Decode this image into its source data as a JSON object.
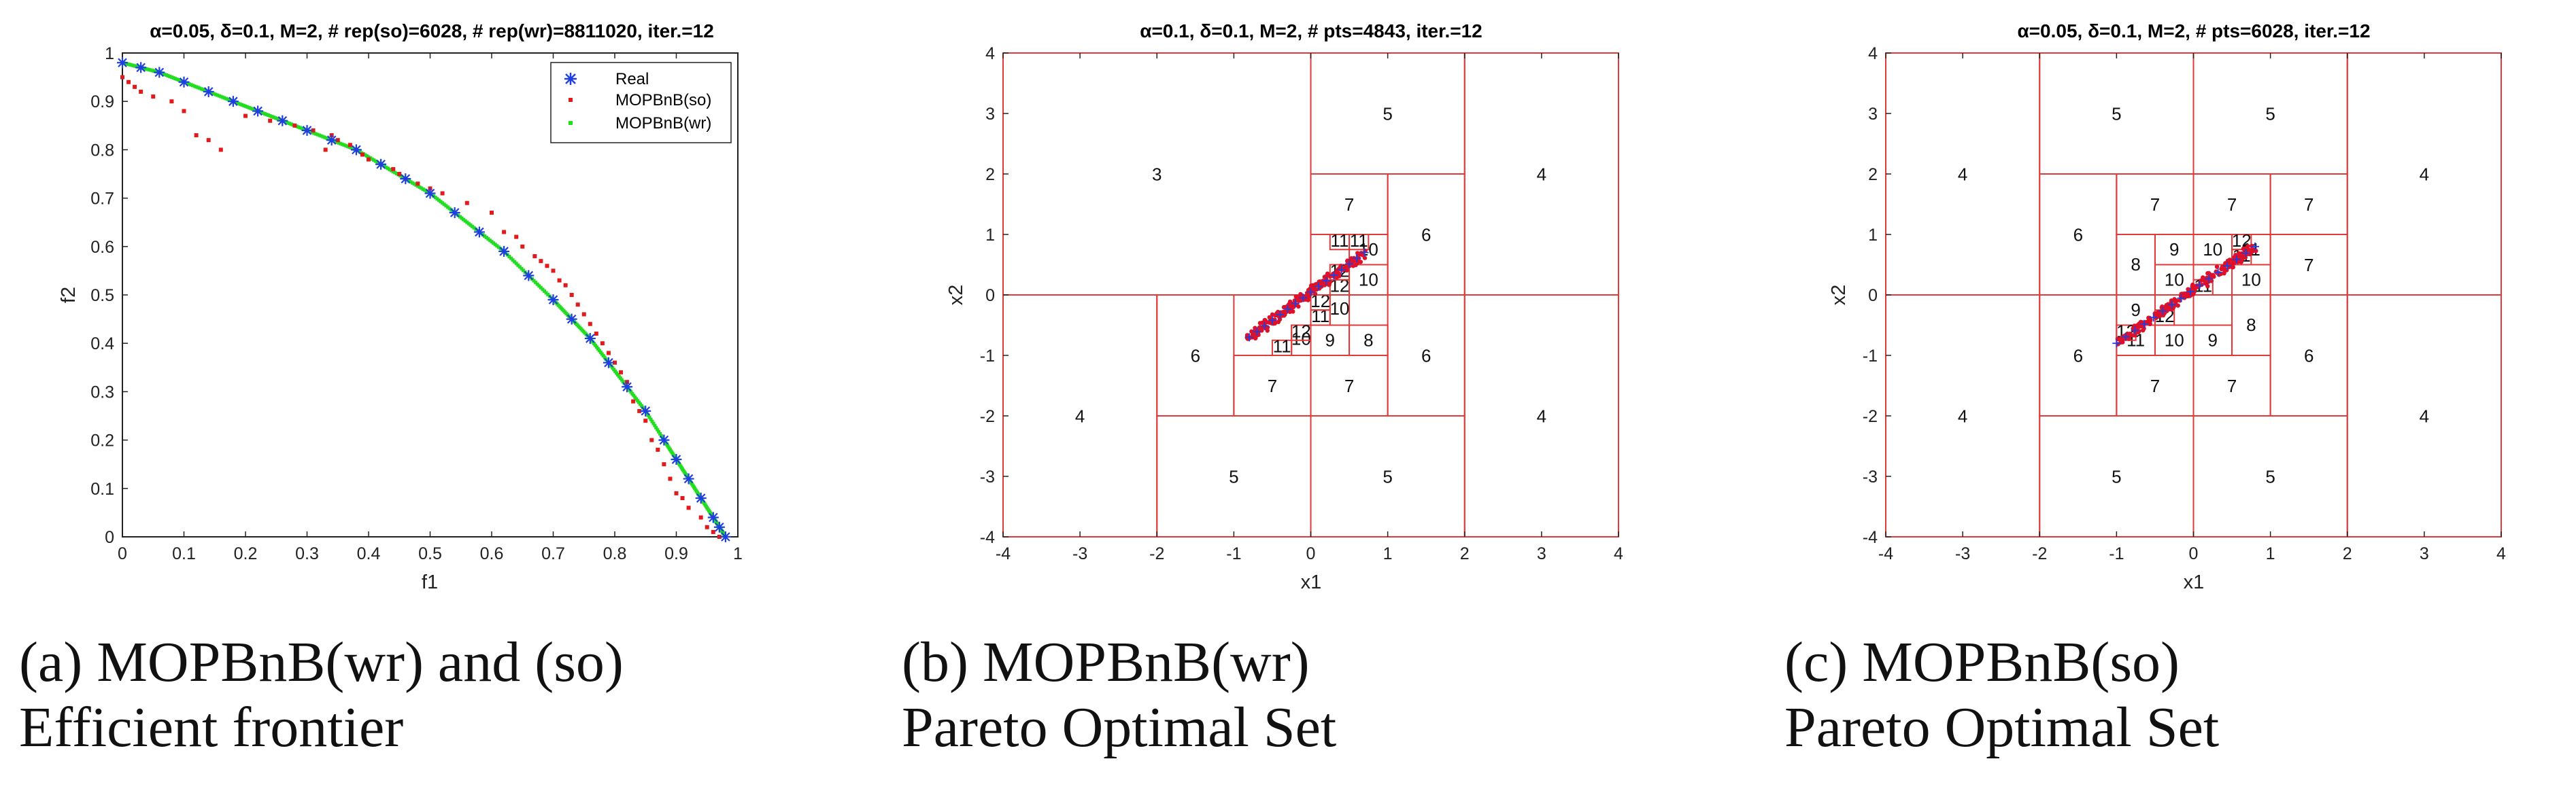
{
  "chart_data": [
    {
      "type": "scatter",
      "title": "α=0.05, δ=0.1, M=2, # rep(so)=6028, # rep(wr)=8811020, iter.=12",
      "xlabel": "f1",
      "ylabel": "f2",
      "xlim": [
        0,
        1
      ],
      "ylim": [
        0,
        1
      ],
      "xticks": [
        "0",
        "0.1",
        "0.2",
        "0.3",
        "0.4",
        "0.5",
        "0.6",
        "0.7",
        "0.8",
        "0.9",
        "1"
      ],
      "yticks": [
        "0",
        "0.1",
        "0.2",
        "0.3",
        "0.4",
        "0.5",
        "0.6",
        "0.7",
        "0.8",
        "0.9",
        "1"
      ],
      "legend_position": "top-right",
      "colors": {
        "real": "#1f3fe0",
        "so": "#e01b1b",
        "wr": "#22dd22",
        "axis": "#222222"
      },
      "series": [
        {
          "name": "Real",
          "marker": "asterisk",
          "x": [
            0,
            0.03,
            0.06,
            0.1,
            0.14,
            0.18,
            0.22,
            0.26,
            0.3,
            0.34,
            0.38,
            0.42,
            0.46,
            0.5,
            0.54,
            0.58,
            0.62,
            0.66,
            0.7,
            0.73,
            0.76,
            0.79,
            0.82,
            0.85,
            0.88,
            0.9,
            0.92,
            0.94,
            0.96,
            0.97,
            0.98
          ],
          "y": [
            0.98,
            0.97,
            0.96,
            0.94,
            0.92,
            0.9,
            0.88,
            0.86,
            0.84,
            0.82,
            0.8,
            0.77,
            0.74,
            0.71,
            0.67,
            0.63,
            0.59,
            0.54,
            0.49,
            0.45,
            0.41,
            0.36,
            0.31,
            0.26,
            0.2,
            0.16,
            0.12,
            0.08,
            0.04,
            0.02,
            0
          ]
        },
        {
          "name": "MOPBnB(so)",
          "marker": "dot",
          "x": [
            0,
            0.01,
            0.02,
            0.03,
            0.05,
            0.08,
            0.1,
            0.12,
            0.14,
            0.16,
            0.2,
            0.24,
            0.28,
            0.31,
            0.33,
            0.34,
            0.35,
            0.37,
            0.38,
            0.39,
            0.4,
            0.42,
            0.44,
            0.45,
            0.46,
            0.48,
            0.5,
            0.52,
            0.56,
            0.6,
            0.62,
            0.64,
            0.65,
            0.67,
            0.68,
            0.69,
            0.7,
            0.71,
            0.72,
            0.73,
            0.74,
            0.75,
            0.76,
            0.77,
            0.78,
            0.79,
            0.8,
            0.81,
            0.82,
            0.83,
            0.84,
            0.85,
            0.86,
            0.87,
            0.88,
            0.89,
            0.9,
            0.91,
            0.92,
            0.94,
            0.95,
            0.96,
            0.97
          ],
          "y": [
            0.95,
            0.94,
            0.93,
            0.92,
            0.91,
            0.9,
            0.88,
            0.83,
            0.82,
            0.8,
            0.87,
            0.86,
            0.85,
            0.84,
            0.8,
            0.83,
            0.82,
            0.81,
            0.8,
            0.79,
            0.78,
            0.77,
            0.76,
            0.75,
            0.74,
            0.73,
            0.72,
            0.71,
            0.69,
            0.67,
            0.63,
            0.62,
            0.6,
            0.58,
            0.57,
            0.56,
            0.55,
            0.53,
            0.52,
            0.5,
            0.48,
            0.46,
            0.44,
            0.42,
            0.4,
            0.38,
            0.36,
            0.34,
            0.32,
            0.28,
            0.26,
            0.24,
            0.2,
            0.18,
            0.15,
            0.12,
            0.09,
            0.08,
            0.06,
            0.04,
            0.02,
            0.01,
            0
          ]
        },
        {
          "name": "MOPBnB(wr)",
          "marker": "dot",
          "x": [
            0,
            0.98
          ],
          "y": [
            0.98,
            0
          ],
          "note": "dense points along the Real frontier"
        }
      ]
    },
    {
      "type": "scatter",
      "title": "α=0.1, δ=0.1, M=2, # pts=4843, iter.=12",
      "xlabel": "x1",
      "ylabel": "x2",
      "xlim": [
        -4,
        4
      ],
      "ylim": [
        -4,
        4
      ],
      "xticks": [
        "-4",
        "-3",
        "-2",
        "-1",
        "0",
        "1",
        "2",
        "3",
        "4"
      ],
      "yticks": [
        "-4",
        "-3",
        "-2",
        "-1",
        "0",
        "1",
        "2",
        "3",
        "4"
      ],
      "colors": {
        "rect": "#e03a3a",
        "points": "#e0102a",
        "real": "#1f3fe0"
      },
      "cells": [
        {
          "label": "3",
          "x": [
            -4,
            0
          ],
          "y": [
            0,
            4
          ]
        },
        {
          "label": "4",
          "x": [
            -4,
            -2
          ],
          "y": [
            -4,
            0
          ]
        },
        {
          "label": "4",
          "x": [
            2,
            4
          ],
          "y": [
            0,
            4
          ]
        },
        {
          "label": "4",
          "x": [
            2,
            4
          ],
          "y": [
            -4,
            0
          ]
        },
        {
          "label": "5",
          "x": [
            0,
            2
          ],
          "y": [
            2,
            4
          ]
        },
        {
          "label": "5",
          "x": [
            -2,
            0
          ],
          "y": [
            -4,
            -2
          ]
        },
        {
          "label": "5",
          "x": [
            0,
            2
          ],
          "y": [
            -4,
            -2
          ]
        },
        {
          "label": "6",
          "x": [
            1,
            2
          ],
          "y": [
            0,
            2
          ]
        },
        {
          "label": "6",
          "x": [
            -2,
            -1
          ],
          "y": [
            -2,
            0
          ]
        },
        {
          "label": "6",
          "x": [
            1,
            2
          ],
          "y": [
            -2,
            0
          ]
        },
        {
          "label": "7",
          "x": [
            0,
            1
          ],
          "y": [
            1,
            2
          ]
        },
        {
          "label": "7",
          "x": [
            -1,
            0
          ],
          "y": [
            -2,
            -1
          ]
        },
        {
          "label": "7",
          "x": [
            0,
            1
          ],
          "y": [
            -2,
            -1
          ]
        },
        {
          "label": "8",
          "x": [
            0.5,
            1
          ],
          "y": [
            -1,
            -0.5
          ]
        },
        {
          "label": "9",
          "x": [
            0,
            0.5
          ],
          "y": [
            -1,
            -0.5
          ]
        },
        {
          "label": "10",
          "x": [
            -0.25,
            0
          ],
          "y": [
            -1,
            -0.5
          ]
        },
        {
          "label": "10",
          "x": [
            0.25,
            0.5
          ],
          "y": [
            -0.5,
            0
          ]
        },
        {
          "label": "10",
          "x": [
            0.5,
            1
          ],
          "y": [
            0.5,
            1
          ]
        },
        {
          "label": "10",
          "x": [
            0.5,
            1
          ],
          "y": [
            0,
            0.5
          ]
        },
        {
          "label": "11",
          "x": [
            -0.5,
            -0.25
          ],
          "y": [
            -1,
            -0.75
          ]
        },
        {
          "label": "11",
          "x": [
            0,
            0.25
          ],
          "y": [
            -0.5,
            -0.25
          ]
        },
        {
          "label": "11",
          "x": [
            0.25,
            0.5
          ],
          "y": [
            0.75,
            1
          ]
        },
        {
          "label": "11",
          "x": [
            0.5,
            0.75
          ],
          "y": [
            0.75,
            1
          ]
        },
        {
          "label": "12",
          "x": [
            0,
            0.25
          ],
          "y": [
            -0.25,
            0
          ]
        },
        {
          "label": "12",
          "x": [
            0.25,
            0.5
          ],
          "y": [
            0,
            0.25
          ]
        },
        {
          "label": "12",
          "x": [
            0.25,
            0.5
          ],
          "y": [
            0.25,
            0.5
          ]
        },
        {
          "label": "12",
          "x": [
            -0.25,
            0
          ],
          "y": [
            -0.75,
            -0.5
          ]
        }
      ],
      "points_diagonal": {
        "x": [
          -0.8,
          0.7
        ],
        "y": [
          -0.7,
          0.7
        ]
      }
    },
    {
      "type": "scatter",
      "title": "α=0.05, δ=0.1, M=2, # pts=6028, iter.=12",
      "xlabel": "x1",
      "ylabel": "x2",
      "xlim": [
        -4,
        4
      ],
      "ylim": [
        -4,
        4
      ],
      "xticks": [
        "-4",
        "-3",
        "-2",
        "-1",
        "0",
        "1",
        "2",
        "3",
        "4"
      ],
      "yticks": [
        "-4",
        "-3",
        "-2",
        "-1",
        "0",
        "1",
        "2",
        "3",
        "4"
      ],
      "colors": {
        "rect": "#e03a3a",
        "points": "#e0102a",
        "real": "#1f3fe0"
      },
      "cells": [
        {
          "label": "4",
          "x": [
            -4,
            -2
          ],
          "y": [
            0,
            4
          ]
        },
        {
          "label": "4",
          "x": [
            -4,
            -2
          ],
          "y": [
            -4,
            0
          ]
        },
        {
          "label": "4",
          "x": [
            2,
            4
          ],
          "y": [
            0,
            4
          ]
        },
        {
          "label": "4",
          "x": [
            2,
            4
          ],
          "y": [
            -4,
            0
          ]
        },
        {
          "label": "5",
          "x": [
            -2,
            0
          ],
          "y": [
            2,
            4
          ]
        },
        {
          "label": "5",
          "x": [
            0,
            2
          ],
          "y": [
            2,
            4
          ]
        },
        {
          "label": "5",
          "x": [
            -2,
            0
          ],
          "y": [
            -4,
            -2
          ]
        },
        {
          "label": "5",
          "x": [
            0,
            2
          ],
          "y": [
            -4,
            -2
          ]
        },
        {
          "label": "6",
          "x": [
            -2,
            -1
          ],
          "y": [
            0,
            2
          ]
        },
        {
          "label": "6",
          "x": [
            -2,
            -1
          ],
          "y": [
            -2,
            0
          ]
        },
        {
          "label": "6",
          "x": [
            1,
            2
          ],
          "y": [
            -2,
            0
          ]
        },
        {
          "label": "7",
          "x": [
            -1,
            0
          ],
          "y": [
            1,
            2
          ]
        },
        {
          "label": "7",
          "x": [
            0,
            1
          ],
          "y": [
            1,
            2
          ]
        },
        {
          "label": "7",
          "x": [
            1,
            2
          ],
          "y": [
            1,
            2
          ]
        },
        {
          "label": "7",
          "x": [
            1,
            2
          ],
          "y": [
            0,
            1
          ]
        },
        {
          "label": "7",
          "x": [
            -1,
            0
          ],
          "y": [
            -2,
            -1
          ]
        },
        {
          "label": "7",
          "x": [
            0,
            1
          ],
          "y": [
            -2,
            -1
          ]
        },
        {
          "label": "8",
          "x": [
            -1,
            -0.5
          ],
          "y": [
            0,
            1
          ]
        },
        {
          "label": "8",
          "x": [
            0.5,
            1
          ],
          "y": [
            -1,
            0
          ]
        },
        {
          "label": "9",
          "x": [
            -0.5,
            0
          ],
          "y": [
            0.5,
            1
          ]
        },
        {
          "label": "9",
          "x": [
            -1,
            -0.5
          ],
          "y": [
            -0.5,
            0
          ]
        },
        {
          "label": "9",
          "x": [
            0,
            0.5
          ],
          "y": [
            -1,
            -0.5
          ]
        },
        {
          "label": "10",
          "x": [
            0,
            0.5
          ],
          "y": [
            0.5,
            1
          ]
        },
        {
          "label": "10",
          "x": [
            -0.5,
            0
          ],
          "y": [
            0,
            0.5
          ]
        },
        {
          "label": "10",
          "x": [
            0.5,
            1
          ],
          "y": [
            0,
            0.5
          ]
        },
        {
          "label": "10",
          "x": [
            -0.5,
            0
          ],
          "y": [
            -1,
            -0.5
          ]
        },
        {
          "label": "11",
          "x": [
            0.5,
            1
          ],
          "y": [
            0.5,
            1
          ]
        },
        {
          "label": "11",
          "x": [
            0.5,
            0.75
          ],
          "y": [
            0.5,
            0.75
          ]
        },
        {
          "label": "11",
          "x": [
            -1,
            -0.5
          ],
          "y": [
            -1,
            -0.5
          ]
        },
        {
          "label": "11",
          "x": [
            0,
            0.25
          ],
          "y": [
            0,
            0.25
          ]
        },
        {
          "label": "12",
          "x": [
            -1,
            -0.75
          ],
          "y": [
            -0.75,
            -0.5
          ]
        },
        {
          "label": "12",
          "x": [
            0.5,
            0.75
          ],
          "y": [
            0.75,
            1
          ]
        },
        {
          "label": "12",
          "x": [
            -0.5,
            -0.25
          ],
          "y": [
            -0.5,
            -0.25
          ]
        }
      ],
      "points_diagonal": {
        "x": [
          -1,
          0.8
        ],
        "y": [
          -0.8,
          0.8
        ]
      }
    }
  ],
  "captions": [
    {
      "line1": "(a) MOPBnB(wr) and (so)",
      "line2": "Efficient frontier"
    },
    {
      "line1": "(b) MOPBnB(wr)",
      "line2": "Pareto Optimal Set"
    },
    {
      "line1": "(c) MOPBnB(so)",
      "line2": "Pareto Optimal Set"
    }
  ]
}
